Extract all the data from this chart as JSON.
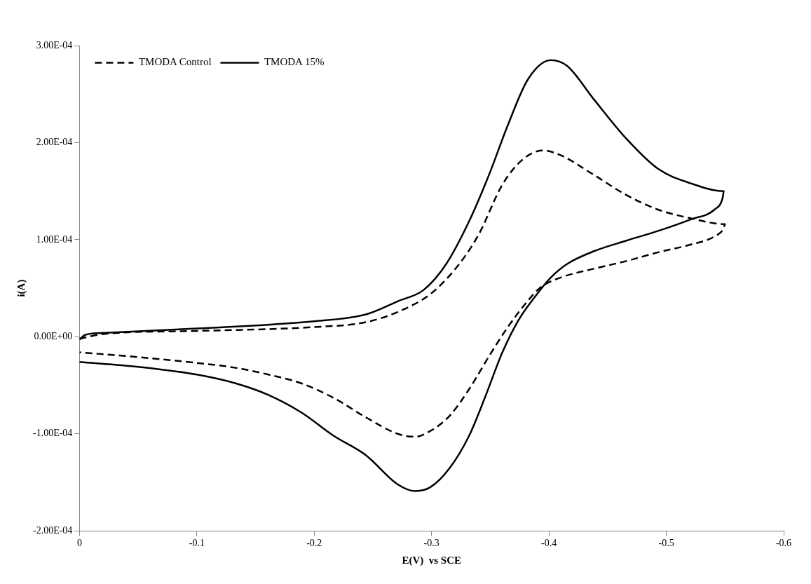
{
  "chart_data": {
    "type": "line",
    "xlabel": "E(V)  vs SCE",
    "ylabel": "i(A)",
    "legend": "top left",
    "grid": false,
    "marker": "none",
    "xlim": [
      0,
      -0.6
    ],
    "xticks": [
      0,
      -0.1,
      -0.2,
      -0.3,
      -0.4,
      -0.5,
      -0.6
    ],
    "ylim": [
      -0.0002,
      0.0003
    ],
    "yticks": [
      {
        "value": -0.0002,
        "label": "-2.00E-04"
      },
      {
        "value": -0.0001,
        "label": "-1.00E-04"
      },
      {
        "value": 0,
        "label": "0.00E+00"
      },
      {
        "value": 0.0001,
        "label": "1.00E-04"
      },
      {
        "value": 0.0002,
        "label": "2.00E-04"
      },
      {
        "value": 0.0003,
        "label": "3.00E-04"
      }
    ],
    "series": [
      {
        "name": "TMODA Control",
        "color": "#000000",
        "line_style": "dashed",
        "x": [
          0,
          -0.022,
          -0.1,
          -0.2,
          -0.244,
          -0.272,
          -0.299,
          -0.321,
          -0.34,
          -0.36,
          -0.377,
          -0.395,
          -0.41,
          -0.438,
          -0.466,
          -0.493,
          -0.521,
          -0.55,
          -0.549,
          -0.542,
          -0.521,
          -0.493,
          -0.466,
          -0.438,
          -0.41,
          -0.393,
          -0.382,
          -0.365,
          -0.349,
          -0.332,
          -0.315,
          -0.299,
          -0.286,
          -0.271,
          -0.244,
          -0.2165,
          -0.189,
          -0.161,
          -0.133,
          -0.1,
          -0.05,
          0
        ],
        "values": [
          -2e-06,
          3e-06,
          6e-06,
          1e-05,
          1.5e-05,
          2.6e-05,
          4.4e-05,
          7.1e-05,
          0.000105,
          0.000156,
          0.000182,
          0.000192,
          0.000187,
          0.000167,
          0.000146,
          0.000131,
          0.000122,
          0.000116,
          0.000112,
          0.000104,
          9.5e-05,
          8.7e-05,
          7.8e-05,
          7e-05,
          6.1e-05,
          5.1e-05,
          3.7e-05,
          1e-05,
          -2e-05,
          -5.4e-05,
          -8.2e-05,
          -9.7e-05,
          -0.000103,
          -0.0001,
          -8.3e-05,
          -6.3e-05,
          -4.8e-05,
          -3.9e-05,
          -3.2e-05,
          -2.7e-05,
          -2.1e-05,
          -1.6e-05
        ]
      },
      {
        "name": "TMODA 15%",
        "color": "#000000",
        "line_style": "solid",
        "x": [
          0,
          -0.005,
          -0.022,
          -0.1,
          -0.2,
          -0.244,
          -0.272,
          -0.293,
          -0.3125,
          -0.332,
          -0.349,
          -0.365,
          -0.382,
          -0.4016,
          -0.4155,
          -0.438,
          -0.466,
          -0.493,
          -0.521,
          -0.549,
          -0.548,
          -0.541,
          -0.521,
          -0.493,
          -0.466,
          -0.438,
          -0.4155,
          -0.4016,
          -0.388,
          -0.374,
          -0.36,
          -0.346,
          -0.332,
          -0.315,
          -0.299,
          -0.286,
          -0.271,
          -0.244,
          -0.2165,
          -0.189,
          -0.161,
          -0.133,
          -0.1,
          -0.05,
          0
        ],
        "values": [
          -3e-06,
          2e-06,
          4e-06,
          8.5e-06,
          1.6e-05,
          2.3e-05,
          3.7e-05,
          4.8e-05,
          7.5e-05,
          0.000119,
          0.000167,
          0.000218,
          0.000265,
          0.000285,
          0.000279,
          0.000245,
          0.000204,
          0.000173,
          0.000158,
          0.00015,
          0.000143,
          0.000131,
          0.000121,
          0.000109,
          9.9e-05,
          8.8e-05,
          7.5e-05,
          6.1e-05,
          4.1e-05,
          1.7e-05,
          -1.7e-05,
          -6.1e-05,
          -0.000102,
          -0.000136,
          -0.000155,
          -0.000159,
          -0.000152,
          -0.000122,
          -0.000102,
          -7.8e-05,
          -6e-05,
          -4.8e-05,
          -3.9e-05,
          -3.1e-05,
          -2.6e-05
        ]
      }
    ]
  }
}
